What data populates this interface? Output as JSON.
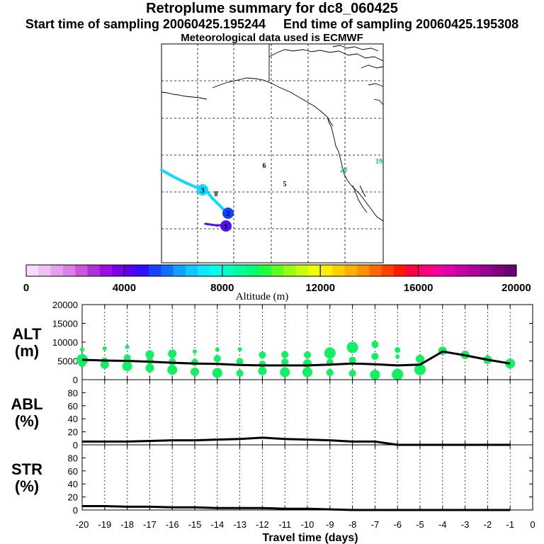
{
  "header": {
    "title": "Retroplume summary for dc8_060425",
    "start_label": "Start time of sampling 20060425.195244",
    "end_label": "End time of sampling 20060425.195308",
    "met_label": "Meteorological data used is ECMWF"
  },
  "map": {
    "markers": [
      {
        "label": "6",
        "kind": "text"
      },
      {
        "label": "5",
        "kind": "text"
      },
      {
        "label": "8",
        "kind": "text"
      },
      {
        "label": "20",
        "kind": "text"
      },
      {
        "label": "19",
        "kind": "text"
      },
      {
        "label": "3",
        "kind": "circle"
      },
      {
        "label": "2",
        "kind": "circle"
      },
      {
        "label": "1",
        "kind": "circle"
      }
    ]
  },
  "colorbar": {
    "label": "Altitude (m)",
    "ticks": [
      "0",
      "4000",
      "8000",
      "12000",
      "16000",
      "20000"
    ],
    "colors": [
      "#f7dcf7",
      "#f0c0f0",
      "#e8a0ec",
      "#dd80e6",
      "#cc55dd",
      "#b030d8",
      "#9a10e0",
      "#7a00e8",
      "#5a00f0",
      "#3010f8",
      "#1840ff",
      "#1070ff",
      "#10a0ff",
      "#10c8ff",
      "#10e8ff",
      "#00ffe8",
      "#00ffc0",
      "#00ff98",
      "#00ff70",
      "#20ff40",
      "#60ff20",
      "#98ff10",
      "#c8ff10",
      "#f0ff00",
      "#ffee00",
      "#ffd000",
      "#ffb000",
      "#ff9000",
      "#ff6800",
      "#ff4000",
      "#ff1800",
      "#ff0040",
      "#ff0078",
      "#f40098",
      "#e000a8",
      "#c800a8",
      "#b0009e",
      "#980090",
      "#800080",
      "#680070"
    ]
  },
  "chart_data": [
    {
      "type": "scatter",
      "panel": "ALT",
      "ylabel": "ALT\n(m)",
      "ylim": [
        0,
        20000
      ],
      "yticks": [
        "0",
        "5000",
        "10000",
        "15000",
        "20000"
      ],
      "xlim": [
        -20,
        0
      ],
      "series": [
        {
          "name": "median altitude",
          "x": [
            -20,
            -19,
            -18,
            -17,
            -16,
            -15,
            -14,
            -13,
            -12,
            -11,
            -10,
            -9,
            -8,
            -7,
            -6,
            -5,
            -4,
            -3,
            -2,
            -1
          ],
          "values": [
            5300,
            5100,
            5000,
            4800,
            4500,
            4300,
            4200,
            3900,
            3800,
            3800,
            3800,
            4000,
            4300,
            4100,
            3800,
            4000,
            7500,
            6500,
            5300,
            4300
          ]
        },
        {
          "name": "plume points",
          "points": [
            [
              -20,
              5300,
              8
            ],
            [
              -20,
              4300,
              5
            ],
            [
              -20,
              8000,
              3
            ],
            [
              -19,
              8300,
              3
            ],
            [
              -19,
              5200,
              4
            ],
            [
              -19,
              4000,
              6
            ],
            [
              -18,
              8700,
              3
            ],
            [
              -18,
              5800,
              5
            ],
            [
              -18,
              3600,
              7
            ],
            [
              -17,
              6700,
              6
            ],
            [
              -17,
              5000,
              5
            ],
            [
              -17,
              3100,
              6
            ],
            [
              -16,
              6900,
              6
            ],
            [
              -16,
              4800,
              5
            ],
            [
              -16,
              2600,
              7
            ],
            [
              -15,
              7500,
              3
            ],
            [
              -15,
              4600,
              5
            ],
            [
              -15,
              2100,
              6
            ],
            [
              -14,
              8000,
              3
            ],
            [
              -14,
              5600,
              5
            ],
            [
              -14,
              1800,
              7
            ],
            [
              -13,
              8100,
              3
            ],
            [
              -13,
              4800,
              5
            ],
            [
              -13,
              1700,
              5
            ],
            [
              -12,
              6600,
              5
            ],
            [
              -12,
              4100,
              5
            ],
            [
              -12,
              2300,
              6
            ],
            [
              -11,
              6700,
              5
            ],
            [
              -11,
              4700,
              5
            ],
            [
              -11,
              2000,
              7
            ],
            [
              -10,
              6600,
              5
            ],
            [
              -10,
              4300,
              6
            ],
            [
              -10,
              2000,
              7
            ],
            [
              -9,
              7100,
              8
            ],
            [
              -9,
              4600,
              5
            ],
            [
              -9,
              1900,
              5
            ],
            [
              -8,
              8600,
              8
            ],
            [
              -8,
              5200,
              5
            ],
            [
              -8,
              1700,
              5
            ],
            [
              -7,
              9400,
              5
            ],
            [
              -7,
              6200,
              5
            ],
            [
              -7,
              1300,
              7
            ],
            [
              -6,
              7900,
              4
            ],
            [
              -6,
              6100,
              3
            ],
            [
              -6,
              1400,
              8
            ],
            [
              -5,
              5500,
              6
            ],
            [
              -5,
              2700,
              8
            ],
            [
              -4,
              7700,
              6
            ],
            [
              -3,
              6600,
              6
            ],
            [
              -2,
              5300,
              6
            ],
            [
              -1,
              4300,
              7
            ]
          ]
        }
      ]
    },
    {
      "type": "line",
      "panel": "ABL",
      "ylabel": "ABL\n(%)",
      "ylim": [
        0,
        100
      ],
      "yticks": [
        "0",
        "20",
        "40",
        "60",
        "80"
      ],
      "x": [
        -20,
        -19,
        -18,
        -17,
        -16,
        -15,
        -14,
        -13,
        -12,
        -11,
        -10,
        -9,
        -8,
        -7,
        -6,
        -5,
        -4,
        -3,
        -2,
        -1
      ],
      "values": [
        5,
        5,
        5,
        6,
        7,
        7,
        8,
        9,
        11,
        9,
        8,
        7,
        5,
        5,
        0,
        0,
        0,
        0,
        0,
        0
      ]
    },
    {
      "type": "line",
      "panel": "STR",
      "ylabel": "STR\n(%)",
      "ylim": [
        0,
        100
      ],
      "yticks": [
        "0",
        "20",
        "40",
        "60",
        "80"
      ],
      "x": [
        -20,
        -19,
        -18,
        -17,
        -16,
        -15,
        -14,
        -13,
        -12,
        -11,
        -10,
        -9,
        -8,
        -7,
        -6,
        -5,
        -4,
        -3,
        -2,
        -1
      ],
      "values": [
        6,
        6,
        5,
        5,
        4,
        4,
        3,
        3,
        3,
        2,
        2,
        1,
        0,
        0,
        0,
        0,
        0,
        0,
        0,
        0
      ]
    }
  ],
  "xaxis": {
    "label": "Travel time (days)",
    "ticks": [
      "-20",
      "-19",
      "-18",
      "-17",
      "-16",
      "-15",
      "-14",
      "-13",
      "-12",
      "-11",
      "-10",
      "-9",
      "-8",
      "-7",
      "-6",
      "-5",
      "-4",
      "-3",
      "-2",
      "-1",
      "0"
    ]
  },
  "colors": {
    "plume_point": "#10f060",
    "median_line": "#000000",
    "traj_cyan": "#10d8ff",
    "traj_blue": "#1040ff",
    "traj_violet": "#5010f0"
  }
}
